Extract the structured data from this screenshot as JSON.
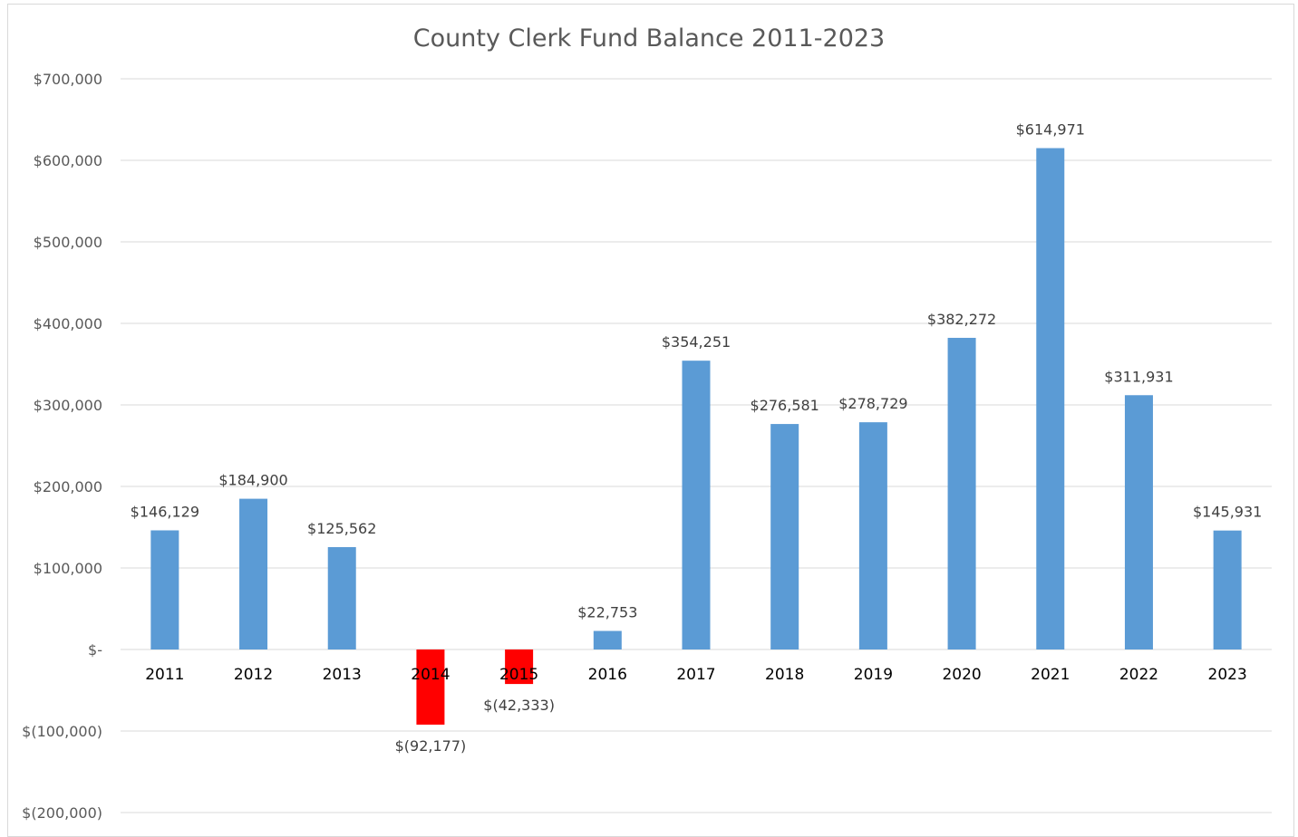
{
  "chart_data": {
    "type": "bar",
    "title": "County Clerk Fund Balance 2011-2023",
    "xlabel": "",
    "ylabel": "",
    "categories": [
      "2011",
      "2012",
      "2013",
      "2014",
      "2015",
      "2016",
      "2017",
      "2018",
      "2019",
      "2020",
      "2021",
      "2022",
      "2023"
    ],
    "values": [
      146129,
      184900,
      125562,
      -92177,
      -42333,
      22753,
      354251,
      276581,
      278729,
      382272,
      614971,
      311931,
      145931
    ],
    "data_labels": [
      "$146,129",
      "$184,900",
      "$125,562",
      "$(92,177)",
      "$(42,333)",
      "$22,753",
      "$354,251",
      "$276,581",
      "$278,729",
      "$382,272",
      "$614,971",
      "$311,931",
      "$145,931"
    ],
    "ylim": [
      -200000,
      700000
    ],
    "yticks": [
      700000,
      600000,
      500000,
      400000,
      300000,
      200000,
      100000,
      0,
      -100000,
      -200000
    ],
    "ytick_labels": [
      "$700,000",
      "$600,000",
      "$500,000",
      "$400,000",
      "$300,000",
      "$200,000",
      "$100,000",
      "$-",
      "$(100,000)",
      "$(200,000)"
    ],
    "grid": true,
    "legend": "none",
    "colors": {
      "positive": "#5b9bd5",
      "negative": "#ff0000",
      "grid": "#d9d9d9",
      "title": "#595959"
    }
  }
}
